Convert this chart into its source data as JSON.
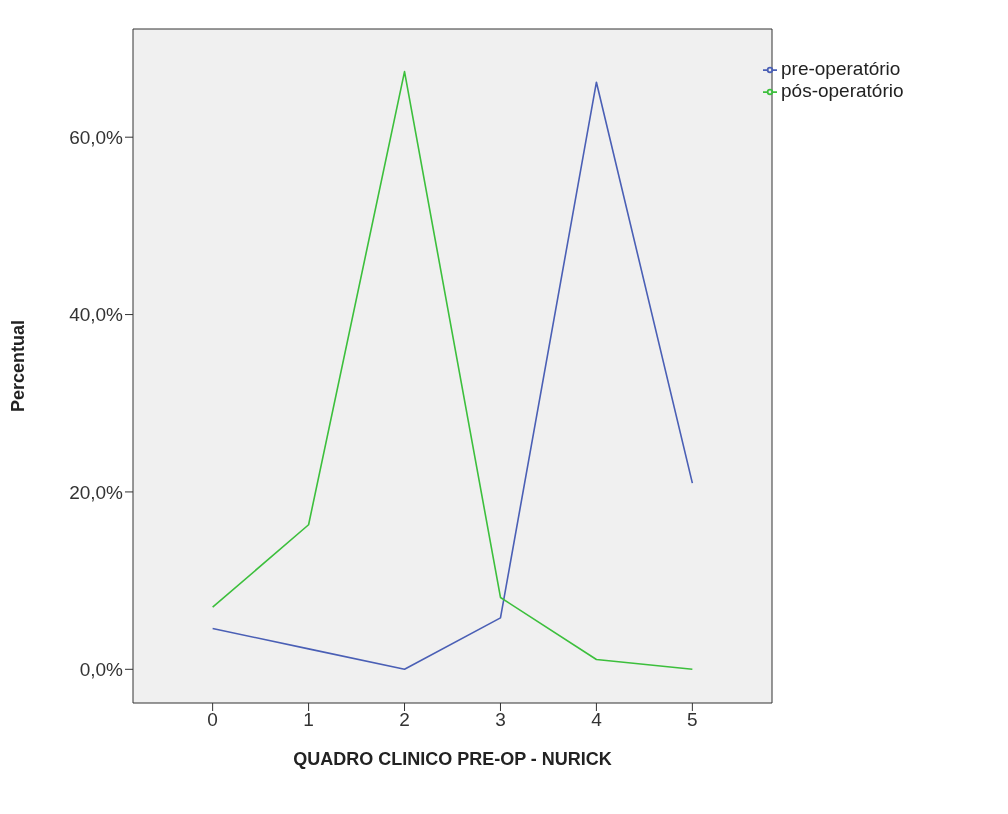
{
  "chart_data": {
    "type": "line",
    "xlabel": "QUADRO CLINICO PRE-OP - NURICK",
    "ylabel": "Percentual",
    "x": [
      0,
      1,
      2,
      3,
      4,
      5
    ],
    "series": [
      {
        "name": "pre-operatório",
        "color": "#4a5fb5",
        "values": [
          4.6,
          2.3,
          0,
          5.8,
          66.2,
          21.0
        ]
      },
      {
        "name": "pós-operatório",
        "color": "#3cbf3c",
        "values": [
          7.0,
          16.3,
          67.4,
          8.1,
          1.1,
          0
        ]
      }
    ],
    "xlim": [
      -0.83,
      5.83
    ],
    "xticks": [
      0,
      1,
      2,
      3,
      4,
      5
    ],
    "ylim": [
      -3.8,
      72.2
    ],
    "yticks": [
      {
        "value": 0,
        "label": "0,0%"
      },
      {
        "value": 20,
        "label": "20,0%"
      },
      {
        "value": 40,
        "label": "40,0%"
      },
      {
        "value": 60,
        "label": "60,0%"
      }
    ],
    "grid": false,
    "legend": "top right",
    "marker": "none",
    "line_style": "solid"
  }
}
